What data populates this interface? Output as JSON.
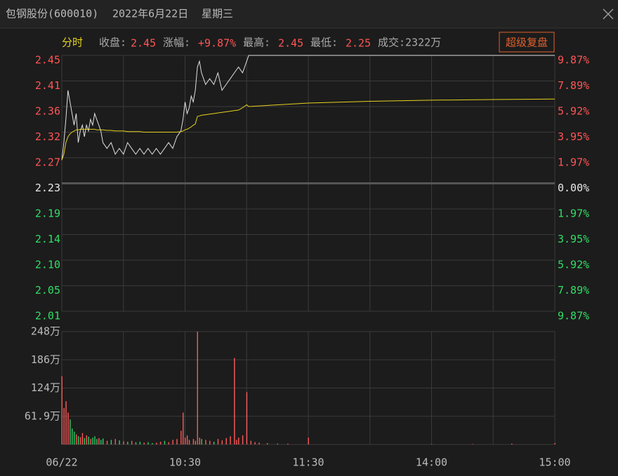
{
  "header": {
    "name": "包钢股份(600010)",
    "date": "2022年6月22日",
    "weekday": "星期三"
  },
  "info": {
    "mode": "分时",
    "close_label": "收盘:",
    "close": "2.45",
    "change_label": "涨幅:",
    "change": "+9.87%",
    "high_label": "最高:",
    "high": "2.45",
    "low_label": "最低:",
    "low": "2.25",
    "turnover": "成交:2322万",
    "button": "超级复盘"
  },
  "chart_data": [
    {
      "type": "line",
      "xlim": [
        0,
        240
      ],
      "xgrid": [
        0,
        30,
        60,
        90,
        120,
        150,
        180,
        210,
        240
      ],
      "ylim": [
        2.01,
        2.45
      ],
      "yticks": [
        2.45,
        {
          "value": 2.406,
          "label": "2.41"
        },
        {
          "value": 2.362,
          "label": "2.36"
        },
        {
          "value": 2.318,
          "label": "2.32"
        },
        {
          "value": 2.274,
          "label": "2.27"
        },
        2.23,
        {
          "value": 2.186,
          "label": "2.19"
        },
        {
          "value": 2.142,
          "label": "2.14"
        },
        {
          "value": 2.098,
          "label": "2.10"
        },
        {
          "value": 2.054,
          "label": "2.05"
        },
        2.01
      ],
      "y2lim": [
        -9.87,
        9.87
      ],
      "y2ticks": [
        {
          "value": 9.87,
          "label": "9.87%"
        },
        {
          "value": 7.89,
          "label": "7.89%"
        },
        {
          "value": 5.92,
          "label": "5.92%"
        },
        {
          "value": 3.95,
          "label": "3.95%"
        },
        {
          "value": 1.97,
          "label": "1.97%"
        },
        {
          "value": 0,
          "label": "0.00%"
        },
        {
          "value": -1.97,
          "label": "1.97%"
        },
        {
          "value": -3.95,
          "label": "3.95%"
        },
        {
          "value": -5.92,
          "label": "5.92%"
        },
        {
          "value": -7.89,
          "label": "7.89%"
        },
        {
          "value": -9.87,
          "label": "9.87%"
        }
      ],
      "up_color": "#ff5555",
      "down_color": "#33dd66",
      "flat_color": "#e8e8e8",
      "x": [
        0,
        1,
        2,
        3,
        4,
        5,
        6,
        7,
        8,
        9,
        10,
        11,
        12,
        13,
        14,
        15,
        16,
        17,
        18,
        19,
        20,
        22,
        24,
        26,
        28,
        30,
        32,
        34,
        36,
        38,
        40,
        42,
        44,
        46,
        48,
        50,
        52,
        54,
        56,
        58,
        59,
        60,
        61,
        62,
        63,
        64,
        65,
        66,
        67,
        68,
        70,
        72,
        74,
        76,
        78,
        80,
        82,
        84,
        86,
        88,
        90,
        91,
        120,
        150,
        180,
        210,
        240
      ],
      "series": [
        {
          "color": "#e0e0e0",
          "values": [
            2.27,
            2.3,
            2.34,
            2.39,
            2.37,
            2.35,
            2.33,
            2.35,
            2.3,
            2.32,
            2.33,
            2.31,
            2.33,
            2.32,
            2.34,
            2.33,
            2.35,
            2.34,
            2.33,
            2.32,
            2.3,
            2.29,
            2.3,
            2.28,
            2.29,
            2.28,
            2.3,
            2.29,
            2.28,
            2.29,
            2.28,
            2.29,
            2.28,
            2.29,
            2.28,
            2.29,
            2.3,
            2.29,
            2.31,
            2.32,
            2.34,
            2.37,
            2.35,
            2.36,
            2.38,
            2.37,
            2.39,
            2.43,
            2.44,
            2.42,
            2.4,
            2.41,
            2.4,
            2.42,
            2.39,
            2.4,
            2.41,
            2.42,
            2.43,
            2.42,
            2.44,
            2.45,
            2.45,
            2.45,
            2.45,
            2.45,
            2.45
          ]
        },
        {
          "color": "#e6d21e",
          "values": [
            2.27,
            2.28,
            2.3,
            2.31,
            2.315,
            2.318,
            2.32,
            2.322,
            2.322,
            2.323,
            2.323,
            2.323,
            2.323,
            2.323,
            2.323,
            2.323,
            2.323,
            2.322,
            2.322,
            2.322,
            2.322,
            2.321,
            2.321,
            2.32,
            2.32,
            2.32,
            2.319,
            2.319,
            2.319,
            2.319,
            2.318,
            2.318,
            2.318,
            2.318,
            2.318,
            2.318,
            2.318,
            2.318,
            2.318,
            2.319,
            2.32,
            2.322,
            2.323,
            2.325,
            2.327,
            2.33,
            2.332,
            2.345,
            2.346,
            2.347,
            2.348,
            2.349,
            2.35,
            2.351,
            2.352,
            2.353,
            2.354,
            2.355,
            2.356,
            2.36,
            2.365,
            2.362,
            2.368,
            2.371,
            2.373,
            2.374,
            2.375
          ]
        }
      ]
    },
    {
      "type": "bar",
      "xlim": [
        0,
        240
      ],
      "xgrid": [
        0,
        30,
        60,
        90,
        120,
        150,
        180,
        210,
        240
      ],
      "xticks": [
        {
          "value": 0,
          "label": "06/22"
        },
        {
          "value": 60,
          "label": "10:30"
        },
        {
          "value": 120,
          "label": "11:30"
        },
        {
          "value": 180,
          "label": "14:00"
        },
        {
          "value": 240,
          "label": "15:00"
        }
      ],
      "ylim": [
        0,
        248
      ],
      "yticks": [
        {
          "value": 248,
          "label": "248万"
        },
        {
          "value": 186,
          "label": "186万"
        },
        {
          "value": 124,
          "label": "124万"
        },
        {
          "value": 61.9,
          "label": "61.9万"
        }
      ],
      "x": [
        0,
        1,
        2,
        3,
        4,
        5,
        6,
        7,
        8,
        9,
        10,
        11,
        12,
        13,
        14,
        15,
        16,
        17,
        18,
        19,
        20,
        22,
        24,
        26,
        28,
        30,
        32,
        34,
        36,
        38,
        40,
        42,
        44,
        46,
        48,
        50,
        52,
        54,
        56,
        58,
        59,
        60,
        61,
        62,
        64,
        65,
        66,
        67,
        68,
        70,
        72,
        74,
        76,
        78,
        80,
        82,
        84,
        85,
        86,
        88,
        90,
        92,
        94,
        96,
        100,
        105,
        110,
        120,
        180,
        200,
        219,
        240
      ],
      "values": [
        150,
        80,
        95,
        70,
        55,
        35,
        28,
        22,
        18,
        16,
        25,
        14,
        20,
        17,
        12,
        15,
        18,
        12,
        14,
        10,
        13,
        8,
        10,
        12,
        9,
        7,
        6,
        8,
        5,
        6,
        4,
        5,
        3,
        4,
        6,
        8,
        5,
        10,
        12,
        30,
        70,
        15,
        20,
        10,
        12,
        8,
        248,
        15,
        12,
        10,
        8,
        6,
        12,
        9,
        14,
        18,
        190,
        10,
        15,
        20,
        115,
        8,
        5,
        4,
        3,
        2,
        2,
        15,
        1,
        1,
        2,
        3
      ],
      "bar_colors": [
        "#ff5a5a",
        "#ff5a5a",
        "#ff5a5a",
        "#ff5a5a",
        "#33cc66",
        "#33cc66",
        "#33cc66",
        "#ff5a5a",
        "#33cc66",
        "#ff5a5a",
        "#ff5a5a",
        "#33cc66",
        "#ff5a5a",
        "#33cc66",
        "#ff5a5a",
        "#33cc66",
        "#33cc66",
        "#33cc66",
        "#ff5a5a",
        "#33cc66",
        "#33cc66",
        "#ff5a5a",
        "#33cc66",
        "#ff5a5a",
        "#33cc66",
        "#ff5a5a",
        "#33cc66",
        "#ff5a5a",
        "#33cc66",
        "#33cc66",
        "#ff5a5a",
        "#33cc66",
        "#33cc66",
        "#ff5a5a",
        "#ff5a5a",
        "#33cc66",
        "#ff5a5a",
        "#ff5a5a",
        "#ff5a5a",
        "#ff5a5a",
        "#ff5a5a",
        "#ff5a5a",
        "#ff5a5a",
        "#ff5a5a",
        "#ff5a5a",
        "#ff5a5a",
        "#ff5a5a",
        "#ff5a5a",
        "#33cc66",
        "#ff5a5a",
        "#ff5a5a",
        "#33cc66",
        "#ff5a5a",
        "#ff5a5a",
        "#ff5a5a",
        "#ff5a5a",
        "#ff5a5a",
        "#ff5a5a",
        "#ff5a5a",
        "#ff5a5a",
        "#ff5a5a",
        "#ff5a5a",
        "#ff5a5a",
        "#ff5a5a",
        "#ff5a5a",
        "#ff5a5a",
        "#ff5a5a",
        "#ff5a5a",
        "#ff5a5a",
        "#ff5a5a",
        "#ff5a5a",
        "#ff5a5a"
      ]
    }
  ]
}
